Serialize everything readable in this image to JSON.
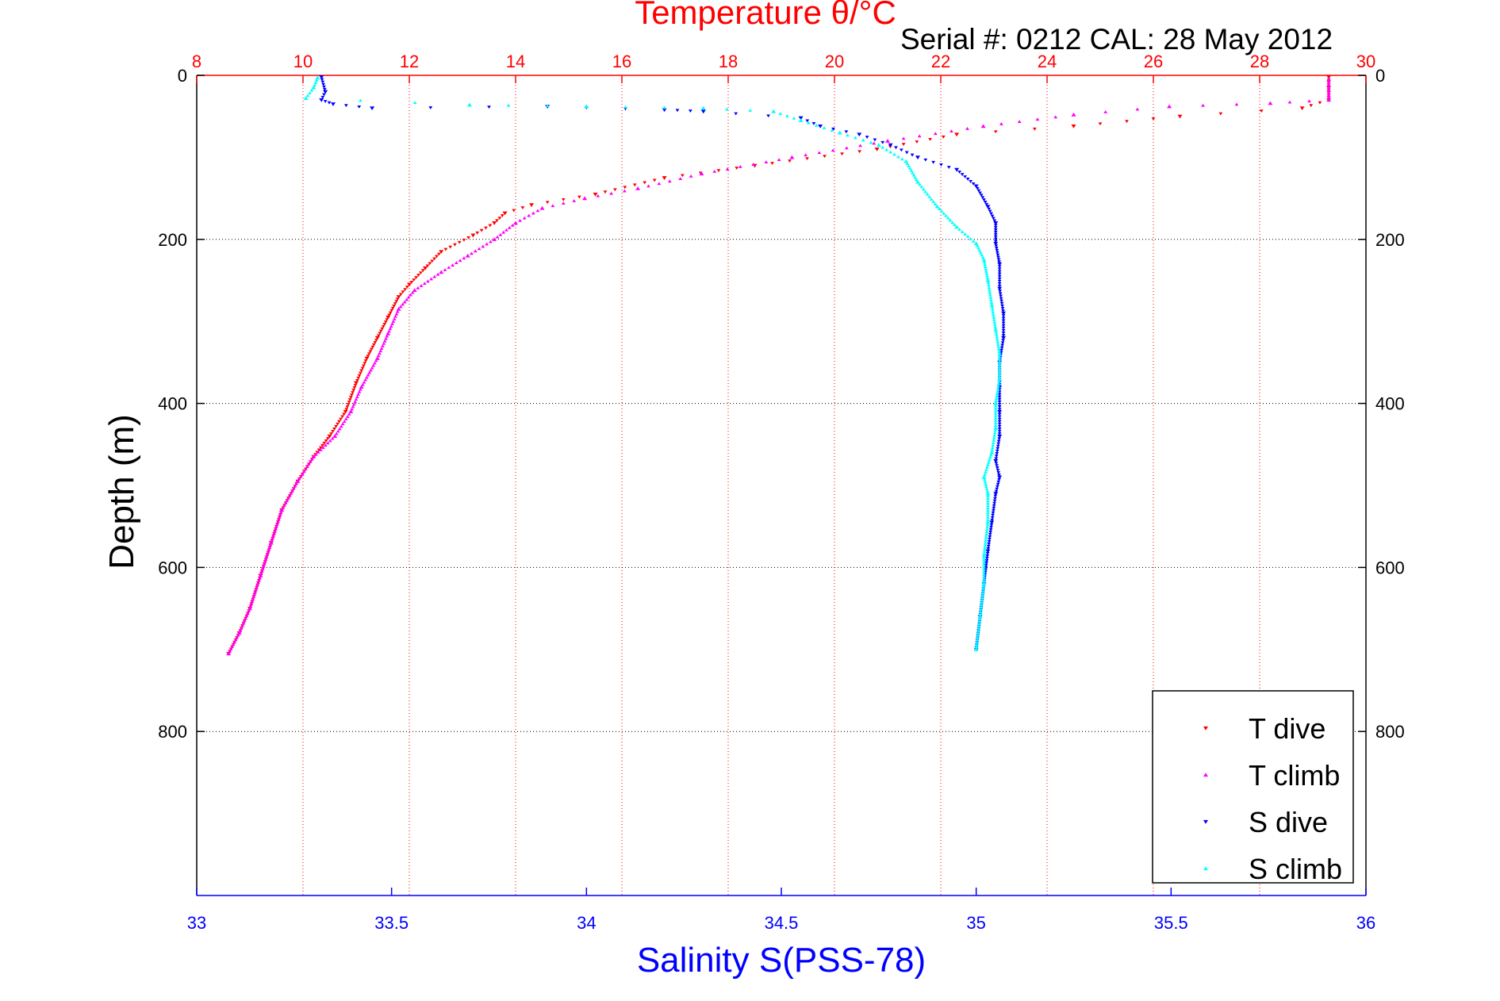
{
  "chart_data": {
    "type": "scatter",
    "title": "Temperature θ/°C",
    "subtitle": "Serial #: 0212  CAL: 28 May 2012",
    "xlabel": "Salinity S(PSS-78)",
    "x2label": "Temperature θ/°C",
    "ylabel": "Depth (m)",
    "xlim_salinity": [
      33,
      36
    ],
    "xlim_temperature": [
      8,
      30
    ],
    "ylim_depth": [
      0,
      1000
    ],
    "y_reversed": true,
    "grid": true,
    "legend_position": "bottom-right",
    "salinity_ticks": [
      "33",
      "33.5",
      "34",
      "34.5",
      "35",
      "35.5",
      "36"
    ],
    "temperature_ticks": [
      "8",
      "10",
      "12",
      "14",
      "16",
      "18",
      "20",
      "22",
      "24",
      "26",
      "28",
      "30"
    ],
    "depth_ticks": [
      "0",
      "200",
      "400",
      "600",
      "800"
    ],
    "colors": {
      "t_dive": "#ff0000",
      "t_climb": "#ff00ff",
      "s_dive": "#0000ff",
      "s_climb": "#00ffff",
      "grid_temp": "#ff0000",
      "grid_depth": "#000000",
      "axis_bottom": "#0000ff",
      "axis_top": "#ff0000"
    },
    "series": [
      {
        "name": "T dive",
        "axis": "temperature",
        "marker": "triangle-down",
        "points": [
          [
            29.3,
            2
          ],
          [
            29.3,
            15
          ],
          [
            29.3,
            30
          ],
          [
            28.8,
            40
          ],
          [
            26.5,
            50
          ],
          [
            24.5,
            62
          ],
          [
            22.3,
            72
          ],
          [
            20.8,
            90
          ],
          [
            18.5,
            110
          ],
          [
            16.8,
            125
          ],
          [
            15.5,
            145
          ],
          [
            14.3,
            158
          ],
          [
            13.8,
            168
          ],
          [
            13.6,
            180
          ],
          [
            13.2,
            195
          ],
          [
            12.6,
            215
          ],
          [
            12.3,
            235
          ],
          [
            12.0,
            255
          ],
          [
            11.8,
            270
          ],
          [
            11.6,
            295
          ],
          [
            11.4,
            320
          ],
          [
            11.2,
            345
          ],
          [
            11.0,
            375
          ],
          [
            10.8,
            410
          ],
          [
            10.5,
            440
          ],
          [
            10.2,
            465
          ],
          [
            9.9,
            495
          ],
          [
            9.6,
            530
          ],
          [
            9.4,
            570
          ],
          [
            9.2,
            610
          ],
          [
            9.0,
            650
          ],
          [
            8.8,
            680
          ],
          [
            8.6,
            705
          ]
        ]
      },
      {
        "name": "T climb",
        "axis": "temperature",
        "marker": "triangle-up",
        "points": [
          [
            8.6,
            705
          ],
          [
            8.8,
            680
          ],
          [
            9.0,
            650
          ],
          [
            9.2,
            610
          ],
          [
            9.4,
            570
          ],
          [
            9.6,
            530
          ],
          [
            9.9,
            495
          ],
          [
            10.2,
            465
          ],
          [
            10.6,
            440
          ],
          [
            10.9,
            410
          ],
          [
            11.1,
            380
          ],
          [
            11.4,
            345
          ],
          [
            11.6,
            315
          ],
          [
            11.8,
            285
          ],
          [
            12.1,
            262
          ],
          [
            12.6,
            240
          ],
          [
            13.1,
            220
          ],
          [
            13.6,
            200
          ],
          [
            14.0,
            180
          ],
          [
            14.5,
            162
          ],
          [
            15.3,
            150
          ],
          [
            16.3,
            138
          ],
          [
            17.5,
            120
          ],
          [
            19.2,
            100
          ],
          [
            21.0,
            80
          ],
          [
            22.8,
            62
          ],
          [
            24.5,
            48
          ],
          [
            26.3,
            38
          ],
          [
            28.2,
            34
          ],
          [
            29.3,
            30
          ],
          [
            29.3,
            18
          ],
          [
            29.3,
            5
          ]
        ]
      },
      {
        "name": "S dive",
        "axis": "salinity",
        "marker": "triangle-down",
        "points": [
          [
            33.32,
            2
          ],
          [
            33.33,
            20
          ],
          [
            33.32,
            30
          ],
          [
            33.35,
            35
          ],
          [
            33.45,
            40
          ],
          [
            33.9,
            38
          ],
          [
            34.2,
            42
          ],
          [
            34.3,
            44
          ],
          [
            34.55,
            52
          ],
          [
            34.6,
            62
          ],
          [
            34.7,
            72
          ],
          [
            34.78,
            85
          ],
          [
            34.85,
            100
          ],
          [
            34.95,
            115
          ],
          [
            35.0,
            135
          ],
          [
            35.03,
            160
          ],
          [
            35.05,
            180
          ],
          [
            35.05,
            205
          ],
          [
            35.06,
            230
          ],
          [
            35.06,
            260
          ],
          [
            35.07,
            290
          ],
          [
            35.07,
            320
          ],
          [
            35.06,
            350
          ],
          [
            35.06,
            380
          ],
          [
            35.06,
            410
          ],
          [
            35.06,
            440
          ],
          [
            35.05,
            470
          ],
          [
            35.06,
            490
          ],
          [
            35.05,
            510
          ],
          [
            35.04,
            545
          ],
          [
            35.03,
            580
          ],
          [
            35.02,
            620
          ],
          [
            35.01,
            660
          ],
          [
            35.0,
            700
          ]
        ]
      },
      {
        "name": "S climb",
        "axis": "salinity",
        "marker": "triangle-up",
        "points": [
          [
            35.0,
            700
          ],
          [
            35.01,
            660
          ],
          [
            35.02,
            620
          ],
          [
            35.02,
            585
          ],
          [
            35.03,
            545
          ],
          [
            35.03,
            510
          ],
          [
            35.02,
            490
          ],
          [
            35.04,
            460
          ],
          [
            35.05,
            430
          ],
          [
            35.05,
            400
          ],
          [
            35.06,
            370
          ],
          [
            35.06,
            340
          ],
          [
            35.05,
            310
          ],
          [
            35.04,
            280
          ],
          [
            35.03,
            250
          ],
          [
            35.02,
            225
          ],
          [
            35.0,
            205
          ],
          [
            34.95,
            185
          ],
          [
            34.9,
            160
          ],
          [
            34.85,
            130
          ],
          [
            34.82,
            105
          ],
          [
            34.75,
            85
          ],
          [
            34.65,
            70
          ],
          [
            34.55,
            55
          ],
          [
            34.48,
            44
          ],
          [
            34.3,
            40
          ],
          [
            34.0,
            38
          ],
          [
            33.7,
            36
          ],
          [
            33.28,
            28
          ],
          [
            33.3,
            15
          ],
          [
            33.31,
            3
          ]
        ]
      }
    ]
  }
}
